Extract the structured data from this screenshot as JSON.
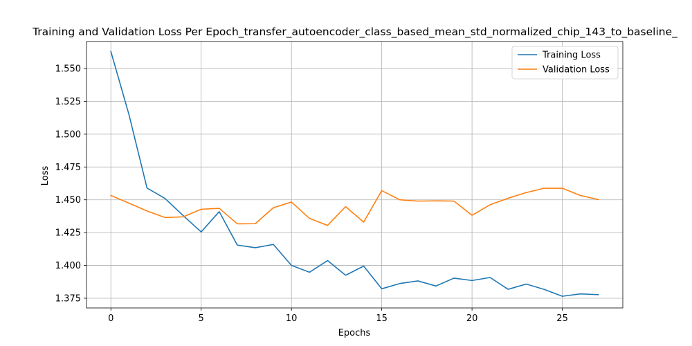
{
  "chart_data": {
    "type": "line",
    "title": "Training and Validation Loss Per Epoch_transfer_autoencoder_class_based_mean_std_normalized_chip_143_to_baseline_",
    "xlabel": "Epochs",
    "ylabel": "Loss",
    "xlim": [
      -1.35,
      28.35
    ],
    "ylim": [
      1.3676,
      1.5706
    ],
    "xticks": [
      0,
      5,
      10,
      15,
      20,
      25
    ],
    "yticks": [
      1.375,
      1.4,
      1.425,
      1.45,
      1.475,
      1.5,
      1.525,
      1.55
    ],
    "ytick_labels": [
      "1.375",
      "1.400",
      "1.425",
      "1.450",
      "1.475",
      "1.500",
      "1.525",
      "1.550"
    ],
    "grid": true,
    "legend": "top-right",
    "x": [
      0,
      1,
      2,
      3,
      4,
      5,
      6,
      7,
      8,
      9,
      10,
      11,
      12,
      13,
      14,
      15,
      16,
      17,
      18,
      19,
      20,
      21,
      22,
      23,
      24,
      25,
      26,
      27
    ],
    "series": [
      {
        "name": "Training Loss",
        "color": "#1f77b4",
        "values": [
          1.563,
          1.515,
          1.459,
          1.451,
          1.438,
          1.4255,
          1.441,
          1.4155,
          1.4135,
          1.416,
          1.4,
          1.3948,
          1.4037,
          1.3925,
          1.3995,
          1.3822,
          1.3862,
          1.3882,
          1.3843,
          1.3903,
          1.3885,
          1.3908,
          1.3818,
          1.3858,
          1.3817,
          1.3765,
          1.3783,
          1.3777
        ]
      },
      {
        "name": "Validation Loss",
        "color": "#ff7f0e",
        "values": [
          1.4533,
          1.4475,
          1.4415,
          1.4365,
          1.437,
          1.4428,
          1.4435,
          1.4317,
          1.4318,
          1.444,
          1.4483,
          1.4358,
          1.4305,
          1.4448,
          1.433,
          1.457,
          1.45,
          1.449,
          1.4492,
          1.449,
          1.4382,
          1.4462,
          1.4512,
          1.4555,
          1.4588,
          1.4588,
          1.4533,
          1.4502
        ]
      }
    ]
  }
}
